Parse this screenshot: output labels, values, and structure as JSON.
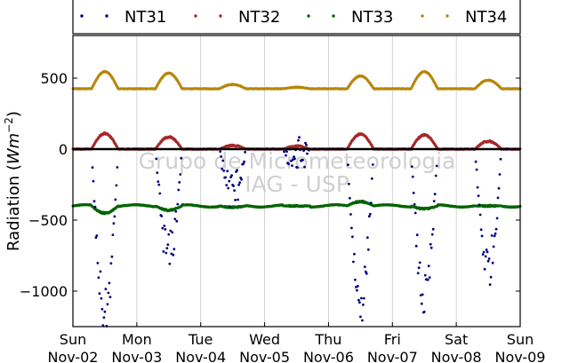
{
  "chart_data": {
    "type": "scatter",
    "xlabel": "",
    "ylabel": "Radiation (Wm⁻²)",
    "ylabel_text": "Radiation (",
    "ylabel_math": "Wm",
    "ylabel_exp": "−2",
    "ylabel_close": ")",
    "xlim_hours": [
      0,
      168
    ],
    "ylim": [
      -1250,
      800
    ],
    "yticks": [
      500,
      0,
      -500,
      -1000
    ],
    "ytick_labels": [
      "500",
      "0",
      "−500",
      "−1000"
    ],
    "x_ticks": [
      {
        "hour": 0,
        "day": "Sun",
        "date": "Nov-02"
      },
      {
        "hour": 24,
        "day": "Mon",
        "date": "Nov-03"
      },
      {
        "hour": 48,
        "day": "Tue",
        "date": "Nov-04"
      },
      {
        "hour": 72,
        "day": "Wed",
        "date": "Nov-05"
      },
      {
        "hour": 96,
        "day": "Thu",
        "date": "Nov-06"
      },
      {
        "hour": 120,
        "day": "Fri",
        "date": "Nov-07"
      },
      {
        "hour": 144,
        "day": "Sat",
        "date": "Nov-08"
      },
      {
        "hour": 168,
        "day": "Sun",
        "date": "Nov-09"
      }
    ],
    "grid": "vertical",
    "legend_placement": "top",
    "zero_line": true,
    "watermark": [
      "Grupo de Micrometeorologia",
      "IAG - USP"
    ],
    "series": [
      {
        "name": "NT31",
        "color": "#00007f",
        "baseline": 0,
        "daily_extreme": [
          -1150,
          -740,
          -300,
          -60,
          -1080,
          -1050,
          -820
        ],
        "noise": 160
      },
      {
        "name": "NT32",
        "color": "#a52a2a",
        "baseline": 0,
        "daily_extreme": [
          110,
          85,
          25,
          20,
          105,
          100,
          55
        ],
        "noise": 12
      },
      {
        "name": "NT33",
        "color": "#006400",
        "baseline": -400,
        "daily_extreme": [
          -50,
          -30,
          -10,
          0,
          30,
          -20,
          0
        ],
        "noise": 12
      },
      {
        "name": "NT34",
        "color": "#b8860b",
        "baseline": 425,
        "daily_extreme": [
          120,
          110,
          30,
          10,
          90,
          120,
          60
        ],
        "noise": 6
      }
    ]
  }
}
